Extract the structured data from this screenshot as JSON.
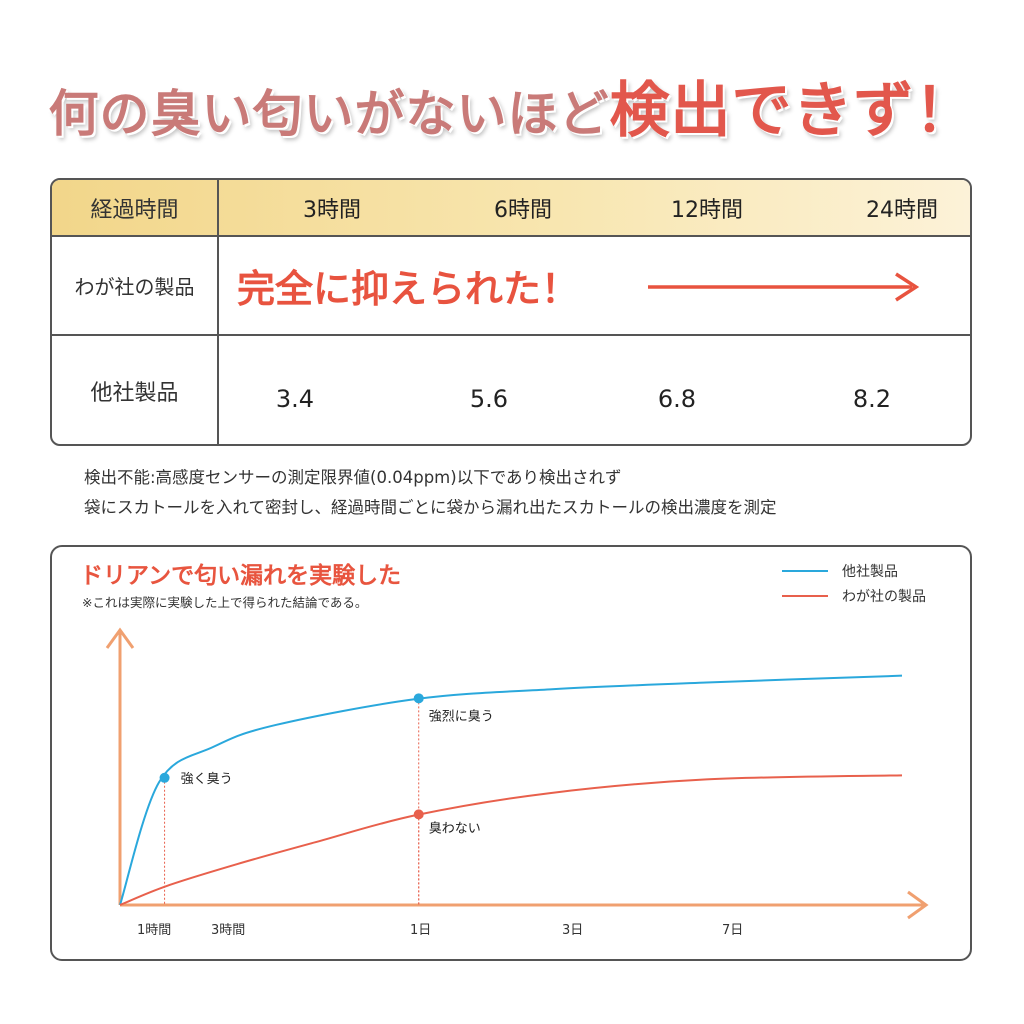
{
  "headline": {
    "part1": "何の臭い匂いがないほど",
    "part2": "検出できず！"
  },
  "table": {
    "header_label": "経過時間",
    "columns": [
      "3時間",
      "6時間",
      "12時間",
      "24時間"
    ],
    "ours_label": "わが社の製品",
    "ours_text": "完全に抑えられた！",
    "others_label": "他社製品",
    "others_values": [
      "3.4",
      "5.6",
      "6.8",
      "8.2"
    ]
  },
  "notes": [
    "検出不能:高感度センサーの測定限界値(0.04ppm)以下であり検出されず",
    "袋にスカトールを入れて密封し、経過時間ごとに袋から漏れ出たスカトールの検出濃度を測定"
  ],
  "colors": {
    "others": "#2aa8dc",
    "ours": "#e8604c",
    "axis": "#f0a070",
    "accent_red": "#e8533f"
  },
  "chart_data": {
    "type": "line",
    "title": "ドリアンで匂い漏れを実験した",
    "subtitle": "※これは実際に実験した上で得られた結論である。",
    "x_ticks": [
      "1時間",
      "3時間",
      "1日",
      "3日",
      "7日"
    ],
    "legend": [
      {
        "name": "他社製品",
        "color": "#2aa8dc"
      },
      {
        "name": "わが社の製品",
        "color": "#e8604c"
      }
    ],
    "legend_position": "top-right",
    "grid": false,
    "series": [
      {
        "name": "他社製品",
        "color": "#2aa8dc",
        "points": [
          [
            0,
            0
          ],
          [
            0.05,
            0.45
          ],
          [
            0.12,
            0.58
          ],
          [
            0.2,
            0.66
          ],
          [
            0.38,
            0.755
          ],
          [
            0.55,
            0.79
          ],
          [
            0.75,
            0.815
          ],
          [
            1.0,
            0.84
          ]
        ]
      },
      {
        "name": "わが社の製品",
        "color": "#e8604c",
        "points": [
          [
            0,
            0
          ],
          [
            0.06,
            0.07
          ],
          [
            0.15,
            0.15
          ],
          [
            0.25,
            0.23
          ],
          [
            0.38,
            0.33
          ],
          [
            0.55,
            0.41
          ],
          [
            0.75,
            0.46
          ],
          [
            1.0,
            0.475
          ]
        ]
      }
    ],
    "annotations": [
      {
        "series": 0,
        "x": 0.057,
        "y": 0.466,
        "label": "強く臭う"
      },
      {
        "series": 0,
        "x": 0.382,
        "y": 0.757,
        "label": "強烈に臭う"
      },
      {
        "series": 1,
        "x": 0.382,
        "y": 0.332,
        "label": "臭わない"
      }
    ]
  }
}
